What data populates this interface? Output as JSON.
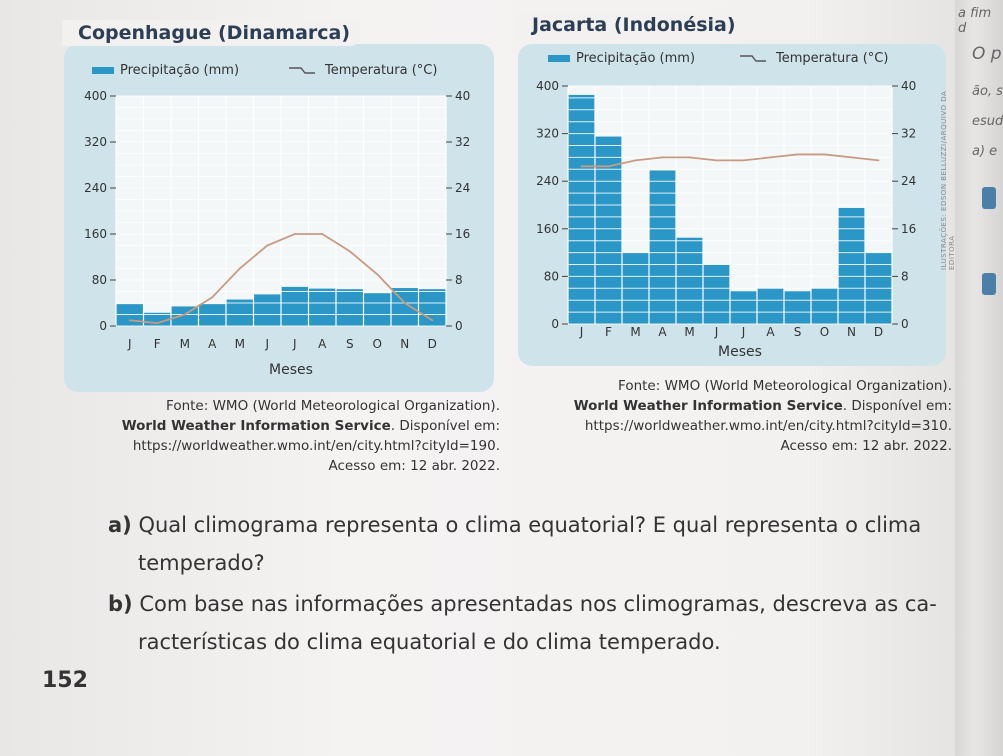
{
  "chart_data": [
    {
      "type": "bar+line",
      "title": "Copenhague (Dinamarca)",
      "categories": [
        "J",
        "F",
        "M",
        "A",
        "M",
        "J",
        "J",
        "A",
        "S",
        "O",
        "N",
        "D"
      ],
      "xlabel": "Meses",
      "legend": [
        "Precipitação (mm)",
        "Temperatura (°C)"
      ],
      "legend_position": "top",
      "series": [
        {
          "name": "Precipitação (mm)",
          "axis": "left",
          "values": [
            38,
            23,
            34,
            38,
            46,
            55,
            68,
            65,
            64,
            57,
            66,
            64
          ]
        },
        {
          "name": "Temperatura (°C)",
          "axis": "right",
          "values": [
            1,
            0.5,
            2,
            5,
            10,
            14,
            16,
            16,
            13,
            9,
            4,
            1
          ]
        }
      ],
      "ylim_left": [
        0,
        400
      ],
      "ylim_right": [
        0,
        40
      ],
      "yticks_left": [
        "0",
        "80",
        "160",
        "240",
        "320",
        "400"
      ],
      "yticks_right": [
        "0",
        "8",
        "16",
        "24",
        "32",
        "40"
      ],
      "grid": true
    },
    {
      "type": "bar+line",
      "title": "Jacarta (Indonésia)",
      "categories": [
        "J",
        "F",
        "M",
        "A",
        "M",
        "J",
        "J",
        "A",
        "S",
        "O",
        "N",
        "D"
      ],
      "xlabel": "Meses",
      "legend": [
        "Precipitação (mm)",
        "Temperatura (°C)"
      ],
      "legend_position": "top",
      "series": [
        {
          "name": "Precipitação (mm)",
          "axis": "left",
          "values": [
            385,
            315,
            120,
            258,
            145,
            100,
            55,
            60,
            55,
            60,
            195,
            120
          ]
        },
        {
          "name": "Temperatura (°C)",
          "axis": "right",
          "values": [
            26.5,
            26.5,
            27.5,
            28,
            28,
            27.5,
            27.5,
            28,
            28.5,
            28.5,
            28,
            27.5
          ]
        }
      ],
      "ylim_left": [
        0,
        400
      ],
      "ylim_right": [
        0,
        40
      ],
      "yticks_left": [
        "0",
        "80",
        "160",
        "240",
        "320",
        "400"
      ],
      "yticks_right": [
        "0",
        "8",
        "16",
        "24",
        "32",
        "40"
      ],
      "grid": true
    }
  ],
  "colors": {
    "bar": "#2a97c7",
    "line": "#c79b82",
    "panel": "#cfe3ea",
    "gridline": "#ffffff",
    "plot_bg": "#f4f7f8"
  },
  "sources": {
    "copenhague": {
      "line1": "Fonte: WMO (World Meteorological Organization).",
      "line2": "World Weather Information Service",
      "line2_rest": ". Disponível em:",
      "line3": "https://worldweather.wmo.int/en/city.html?cityId=190.",
      "line4": "Acesso em: 12 abr. 2022."
    },
    "jacarta": {
      "line1": "Fonte: WMO (World Meteorological Organization).",
      "line2": "World Weather Information Service",
      "line2_rest": ". Disponível em:",
      "line3": "https://worldweather.wmo.int/en/city.html?cityId=310.",
      "line4": "Acesso em: 12 abr. 2022."
    }
  },
  "questions": {
    "a_letter": "a)",
    "a_text1": "Qual climograma representa o clima equatorial? E qual representa o clima",
    "a_text2": "temperado?",
    "b_letter": "b)",
    "b_text1": "Com base nas informações apresentadas nos climogramas, descreva as ca-",
    "b_text2": "racterísticas do clima equatorial e do clima temperado."
  },
  "page_number": "152",
  "margin": {
    "fragment1": "a fim d",
    "fragment2": "O p",
    "fragment3": "ão, s",
    "fragment4": "esud",
    "fragment5": "a) e",
    "credit": "ILUSTRAÇÕES: EDSON BELLUZZI/ARQUIVO DA EDITORA"
  }
}
